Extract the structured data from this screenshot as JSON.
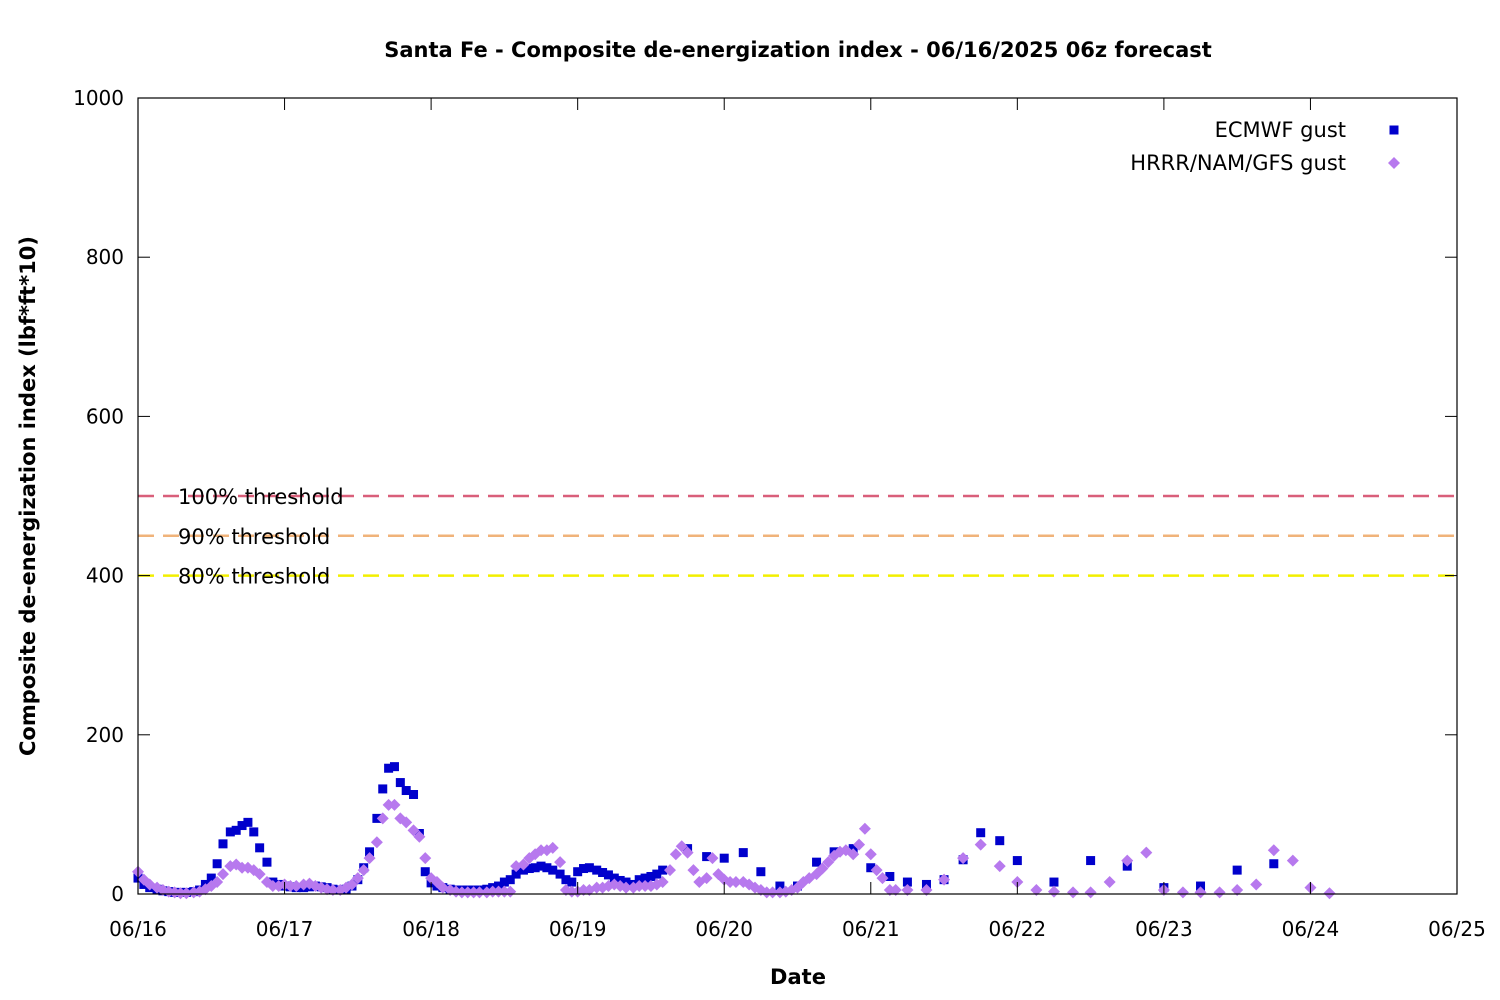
{
  "chart_data": {
    "type": "scatter",
    "title": "Santa Fe - Composite de-energization index - 06/16/2025 06z forecast",
    "xlabel": "Date",
    "ylabel": "Composite de-energization index (lbf*ft*10)",
    "x_ticks": [
      "06/16",
      "06/17",
      "06/18",
      "06/19",
      "06/20",
      "06/21",
      "06/22",
      "06/23",
      "06/24",
      "06/25"
    ],
    "x_unit": "days since 06/16/2025 00z",
    "xlim": [
      0,
      9
    ],
    "ylim": [
      0,
      1000
    ],
    "y_ticks": [
      0,
      200,
      400,
      600,
      800,
      1000
    ],
    "legend_position": "top-right",
    "thresholds": [
      {
        "label": "100% threshold",
        "value": 500,
        "color": "#d95f7a"
      },
      {
        "label": "90% threshold",
        "value": 450,
        "color": "#f0b37a"
      },
      {
        "label": "80% threshold",
        "value": 400,
        "color": "#f2ef00"
      }
    ],
    "series": [
      {
        "name": "ECMWF gust",
        "marker": "square",
        "color": "#0000cc",
        "points": [
          [
            0.0,
            20
          ],
          [
            0.04,
            12
          ],
          [
            0.08,
            8
          ],
          [
            0.13,
            6
          ],
          [
            0.17,
            4
          ],
          [
            0.21,
            3
          ],
          [
            0.25,
            2
          ],
          [
            0.29,
            2
          ],
          [
            0.33,
            2
          ],
          [
            0.38,
            3
          ],
          [
            0.42,
            5
          ],
          [
            0.46,
            12
          ],
          [
            0.5,
            20
          ],
          [
            0.54,
            38
          ],
          [
            0.58,
            63
          ],
          [
            0.63,
            78
          ],
          [
            0.67,
            80
          ],
          [
            0.71,
            86
          ],
          [
            0.75,
            90
          ],
          [
            0.79,
            78
          ],
          [
            0.83,
            58
          ],
          [
            0.88,
            40
          ],
          [
            0.92,
            15
          ],
          [
            0.96,
            12
          ],
          [
            1.0,
            10
          ],
          [
            1.04,
            9
          ],
          [
            1.08,
            8
          ],
          [
            1.13,
            8
          ],
          [
            1.17,
            9
          ],
          [
            1.21,
            10
          ],
          [
            1.25,
            9
          ],
          [
            1.29,
            8
          ],
          [
            1.33,
            6
          ],
          [
            1.38,
            5
          ],
          [
            1.42,
            6
          ],
          [
            1.46,
            10
          ],
          [
            1.5,
            18
          ],
          [
            1.54,
            33
          ],
          [
            1.58,
            53
          ],
          [
            1.63,
            95
          ],
          [
            1.67,
            132
          ],
          [
            1.71,
            158
          ],
          [
            1.75,
            160
          ],
          [
            1.79,
            140
          ],
          [
            1.83,
            130
          ],
          [
            1.88,
            125
          ],
          [
            1.92,
            76
          ],
          [
            1.96,
            28
          ],
          [
            2.0,
            14
          ],
          [
            2.04,
            10
          ],
          [
            2.08,
            8
          ],
          [
            2.13,
            6
          ],
          [
            2.17,
            5
          ],
          [
            2.21,
            5
          ],
          [
            2.25,
            5
          ],
          [
            2.29,
            5
          ],
          [
            2.33,
            5
          ],
          [
            2.38,
            6
          ],
          [
            2.42,
            8
          ],
          [
            2.46,
            10
          ],
          [
            2.5,
            15
          ],
          [
            2.54,
            18
          ],
          [
            2.58,
            25
          ],
          [
            2.63,
            30
          ],
          [
            2.67,
            32
          ],
          [
            2.71,
            33
          ],
          [
            2.75,
            35
          ],
          [
            2.79,
            33
          ],
          [
            2.83,
            30
          ],
          [
            2.88,
            25
          ],
          [
            2.92,
            18
          ],
          [
            2.96,
            15
          ],
          [
            3.0,
            28
          ],
          [
            3.04,
            32
          ],
          [
            3.08,
            33
          ],
          [
            3.13,
            30
          ],
          [
            3.17,
            27
          ],
          [
            3.21,
            24
          ],
          [
            3.25,
            20
          ],
          [
            3.29,
            17
          ],
          [
            3.33,
            15
          ],
          [
            3.38,
            12
          ],
          [
            3.42,
            18
          ],
          [
            3.46,
            20
          ],
          [
            3.5,
            22
          ],
          [
            3.54,
            25
          ],
          [
            3.58,
            30
          ],
          [
            3.75,
            57
          ],
          [
            3.88,
            47
          ],
          [
            4.0,
            45
          ],
          [
            4.13,
            52
          ],
          [
            4.25,
            28
          ],
          [
            4.38,
            10
          ],
          [
            4.5,
            10
          ],
          [
            4.63,
            40
          ],
          [
            4.75,
            53
          ],
          [
            4.88,
            57
          ],
          [
            5.0,
            33
          ],
          [
            5.13,
            22
          ],
          [
            5.25,
            15
          ],
          [
            5.38,
            12
          ],
          [
            5.5,
            18
          ],
          [
            5.63,
            43
          ],
          [
            5.75,
            77
          ],
          [
            5.88,
            67
          ],
          [
            6.0,
            42
          ],
          [
            6.25,
            15
          ],
          [
            6.5,
            42
          ],
          [
            6.75,
            35
          ],
          [
            7.0,
            8
          ],
          [
            7.25,
            10
          ],
          [
            7.5,
            30
          ],
          [
            7.75,
            38
          ]
        ]
      },
      {
        "name": "HRRR/NAM/GFS gust",
        "marker": "diamond",
        "color": "#b779ee",
        "points": [
          [
            0.0,
            28
          ],
          [
            0.04,
            18
          ],
          [
            0.08,
            12
          ],
          [
            0.13,
            8
          ],
          [
            0.17,
            5
          ],
          [
            0.21,
            3
          ],
          [
            0.25,
            2
          ],
          [
            0.29,
            1
          ],
          [
            0.33,
            1
          ],
          [
            0.38,
            2
          ],
          [
            0.42,
            3
          ],
          [
            0.46,
            6
          ],
          [
            0.5,
            10
          ],
          [
            0.54,
            15
          ],
          [
            0.58,
            25
          ],
          [
            0.63,
            35
          ],
          [
            0.67,
            37
          ],
          [
            0.71,
            33
          ],
          [
            0.75,
            33
          ],
          [
            0.79,
            30
          ],
          [
            0.83,
            25
          ],
          [
            0.88,
            15
          ],
          [
            0.92,
            10
          ],
          [
            0.96,
            10
          ],
          [
            1.0,
            12
          ],
          [
            1.04,
            10
          ],
          [
            1.08,
            10
          ],
          [
            1.13,
            12
          ],
          [
            1.17,
            13
          ],
          [
            1.21,
            10
          ],
          [
            1.25,
            8
          ],
          [
            1.29,
            6
          ],
          [
            1.33,
            5
          ],
          [
            1.38,
            5
          ],
          [
            1.42,
            8
          ],
          [
            1.46,
            12
          ],
          [
            1.5,
            20
          ],
          [
            1.54,
            30
          ],
          [
            1.58,
            45
          ],
          [
            1.63,
            65
          ],
          [
            1.67,
            95
          ],
          [
            1.71,
            112
          ],
          [
            1.75,
            112
          ],
          [
            1.79,
            95
          ],
          [
            1.83,
            90
          ],
          [
            1.88,
            80
          ],
          [
            1.92,
            72
          ],
          [
            1.96,
            45
          ],
          [
            2.0,
            20
          ],
          [
            2.04,
            15
          ],
          [
            2.08,
            8
          ],
          [
            2.13,
            5
          ],
          [
            2.17,
            3
          ],
          [
            2.21,
            2
          ],
          [
            2.25,
            2
          ],
          [
            2.29,
            2
          ],
          [
            2.33,
            2
          ],
          [
            2.38,
            2
          ],
          [
            2.42,
            3
          ],
          [
            2.46,
            3
          ],
          [
            2.5,
            3
          ],
          [
            2.54,
            3
          ],
          [
            2.58,
            35
          ],
          [
            2.63,
            37
          ],
          [
            2.67,
            45
          ],
          [
            2.71,
            50
          ],
          [
            2.75,
            55
          ],
          [
            2.79,
            55
          ],
          [
            2.83,
            58
          ],
          [
            2.88,
            40
          ],
          [
            2.92,
            5
          ],
          [
            2.96,
            3
          ],
          [
            3.0,
            3
          ],
          [
            3.04,
            5
          ],
          [
            3.08,
            5
          ],
          [
            3.13,
            8
          ],
          [
            3.17,
            8
          ],
          [
            3.21,
            10
          ],
          [
            3.25,
            12
          ],
          [
            3.29,
            10
          ],
          [
            3.33,
            8
          ],
          [
            3.38,
            8
          ],
          [
            3.42,
            10
          ],
          [
            3.46,
            10
          ],
          [
            3.5,
            10
          ],
          [
            3.54,
            12
          ],
          [
            3.58,
            15
          ],
          [
            3.63,
            30
          ],
          [
            3.67,
            50
          ],
          [
            3.71,
            60
          ],
          [
            3.75,
            52
          ],
          [
            3.79,
            30
          ],
          [
            3.83,
            15
          ],
          [
            3.88,
            20
          ],
          [
            3.92,
            45
          ],
          [
            3.96,
            25
          ],
          [
            4.0,
            18
          ],
          [
            4.04,
            15
          ],
          [
            4.08,
            15
          ],
          [
            4.13,
            15
          ],
          [
            4.17,
            12
          ],
          [
            4.21,
            8
          ],
          [
            4.25,
            5
          ],
          [
            4.29,
            2
          ],
          [
            4.33,
            2
          ],
          [
            4.38,
            2
          ],
          [
            4.42,
            3
          ],
          [
            4.46,
            5
          ],
          [
            4.5,
            8
          ],
          [
            4.54,
            15
          ],
          [
            4.58,
            20
          ],
          [
            4.63,
            25
          ],
          [
            4.67,
            32
          ],
          [
            4.71,
            40
          ],
          [
            4.75,
            48
          ],
          [
            4.79,
            53
          ],
          [
            4.83,
            55
          ],
          [
            4.88,
            50
          ],
          [
            4.92,
            62
          ],
          [
            4.96,
            82
          ],
          [
            5.0,
            50
          ],
          [
            5.04,
            30
          ],
          [
            5.08,
            20
          ],
          [
            5.13,
            5
          ],
          [
            5.17,
            5
          ],
          [
            5.25,
            5
          ],
          [
            5.38,
            5
          ],
          [
            5.5,
            18
          ],
          [
            5.63,
            45
          ],
          [
            5.75,
            62
          ],
          [
            5.88,
            35
          ],
          [
            6.0,
            15
          ],
          [
            6.13,
            5
          ],
          [
            6.25,
            3
          ],
          [
            6.38,
            2
          ],
          [
            6.5,
            2
          ],
          [
            6.63,
            15
          ],
          [
            6.75,
            42
          ],
          [
            6.88,
            52
          ],
          [
            7.0,
            5
          ],
          [
            7.13,
            2
          ],
          [
            7.25,
            2
          ],
          [
            7.38,
            2
          ],
          [
            7.5,
            5
          ],
          [
            7.63,
            12
          ],
          [
            7.75,
            55
          ],
          [
            7.88,
            42
          ],
          [
            8.0,
            8
          ],
          [
            8.13,
            1
          ]
        ]
      }
    ]
  }
}
